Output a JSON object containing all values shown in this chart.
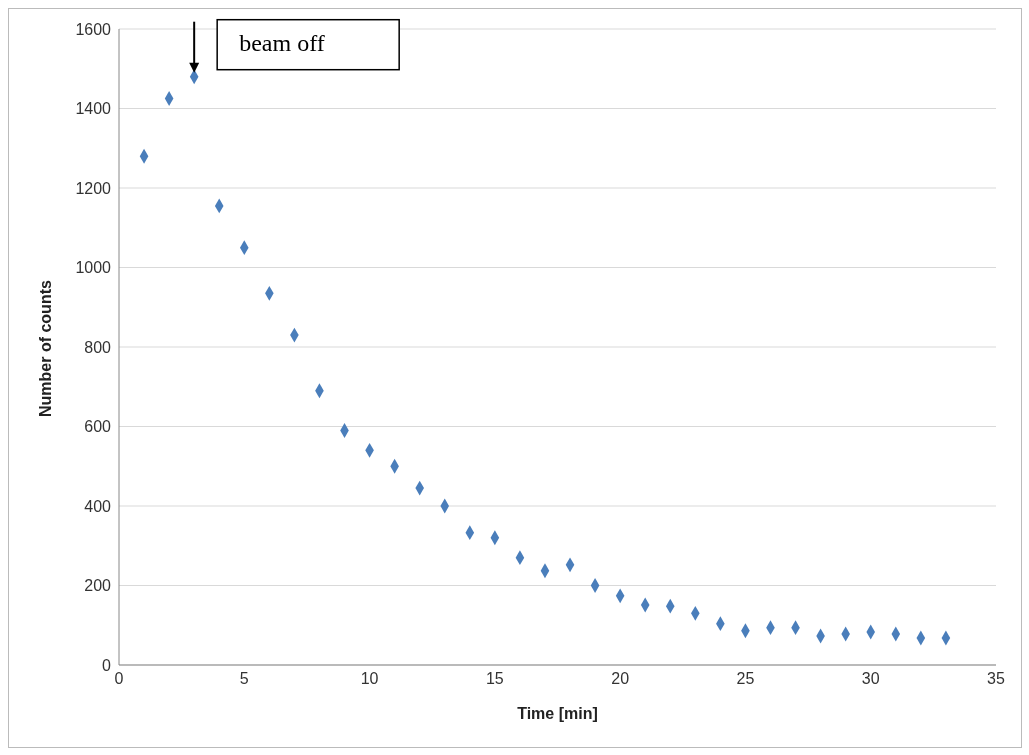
{
  "chart_data": {
    "type": "scatter",
    "xlabel": "Time [min]",
    "ylabel": "Number of counts",
    "x": [
      1,
      2,
      3,
      4,
      5,
      6,
      7,
      8,
      9,
      10,
      11,
      12,
      13,
      14,
      15,
      16,
      17,
      18,
      19,
      20,
      21,
      22,
      23,
      24,
      25,
      26,
      27,
      28,
      29,
      30,
      31,
      32,
      33
    ],
    "values": [
      1280,
      1425,
      1480,
      1155,
      1050,
      935,
      830,
      690,
      590,
      540,
      500,
      445,
      400,
      333,
      320,
      270,
      237,
      252,
      200,
      174,
      151,
      148,
      130,
      104,
      86,
      94,
      94,
      73,
      78,
      83,
      78,
      68,
      68
    ],
    "color": "#4a7ebb",
    "marker": "diamond",
    "grid": "y",
    "legend": false,
    "xlim": [
      0,
      35
    ],
    "xticks": [
      0,
      5,
      10,
      15,
      20,
      25,
      30,
      35
    ],
    "ylim": [
      0,
      1600
    ],
    "yticks": [
      0,
      200,
      400,
      600,
      800,
      1000,
      1200,
      1400,
      1600
    ],
    "annotations": [
      {
        "text": "beam off",
        "x": 3,
        "y": 1480
      }
    ]
  }
}
